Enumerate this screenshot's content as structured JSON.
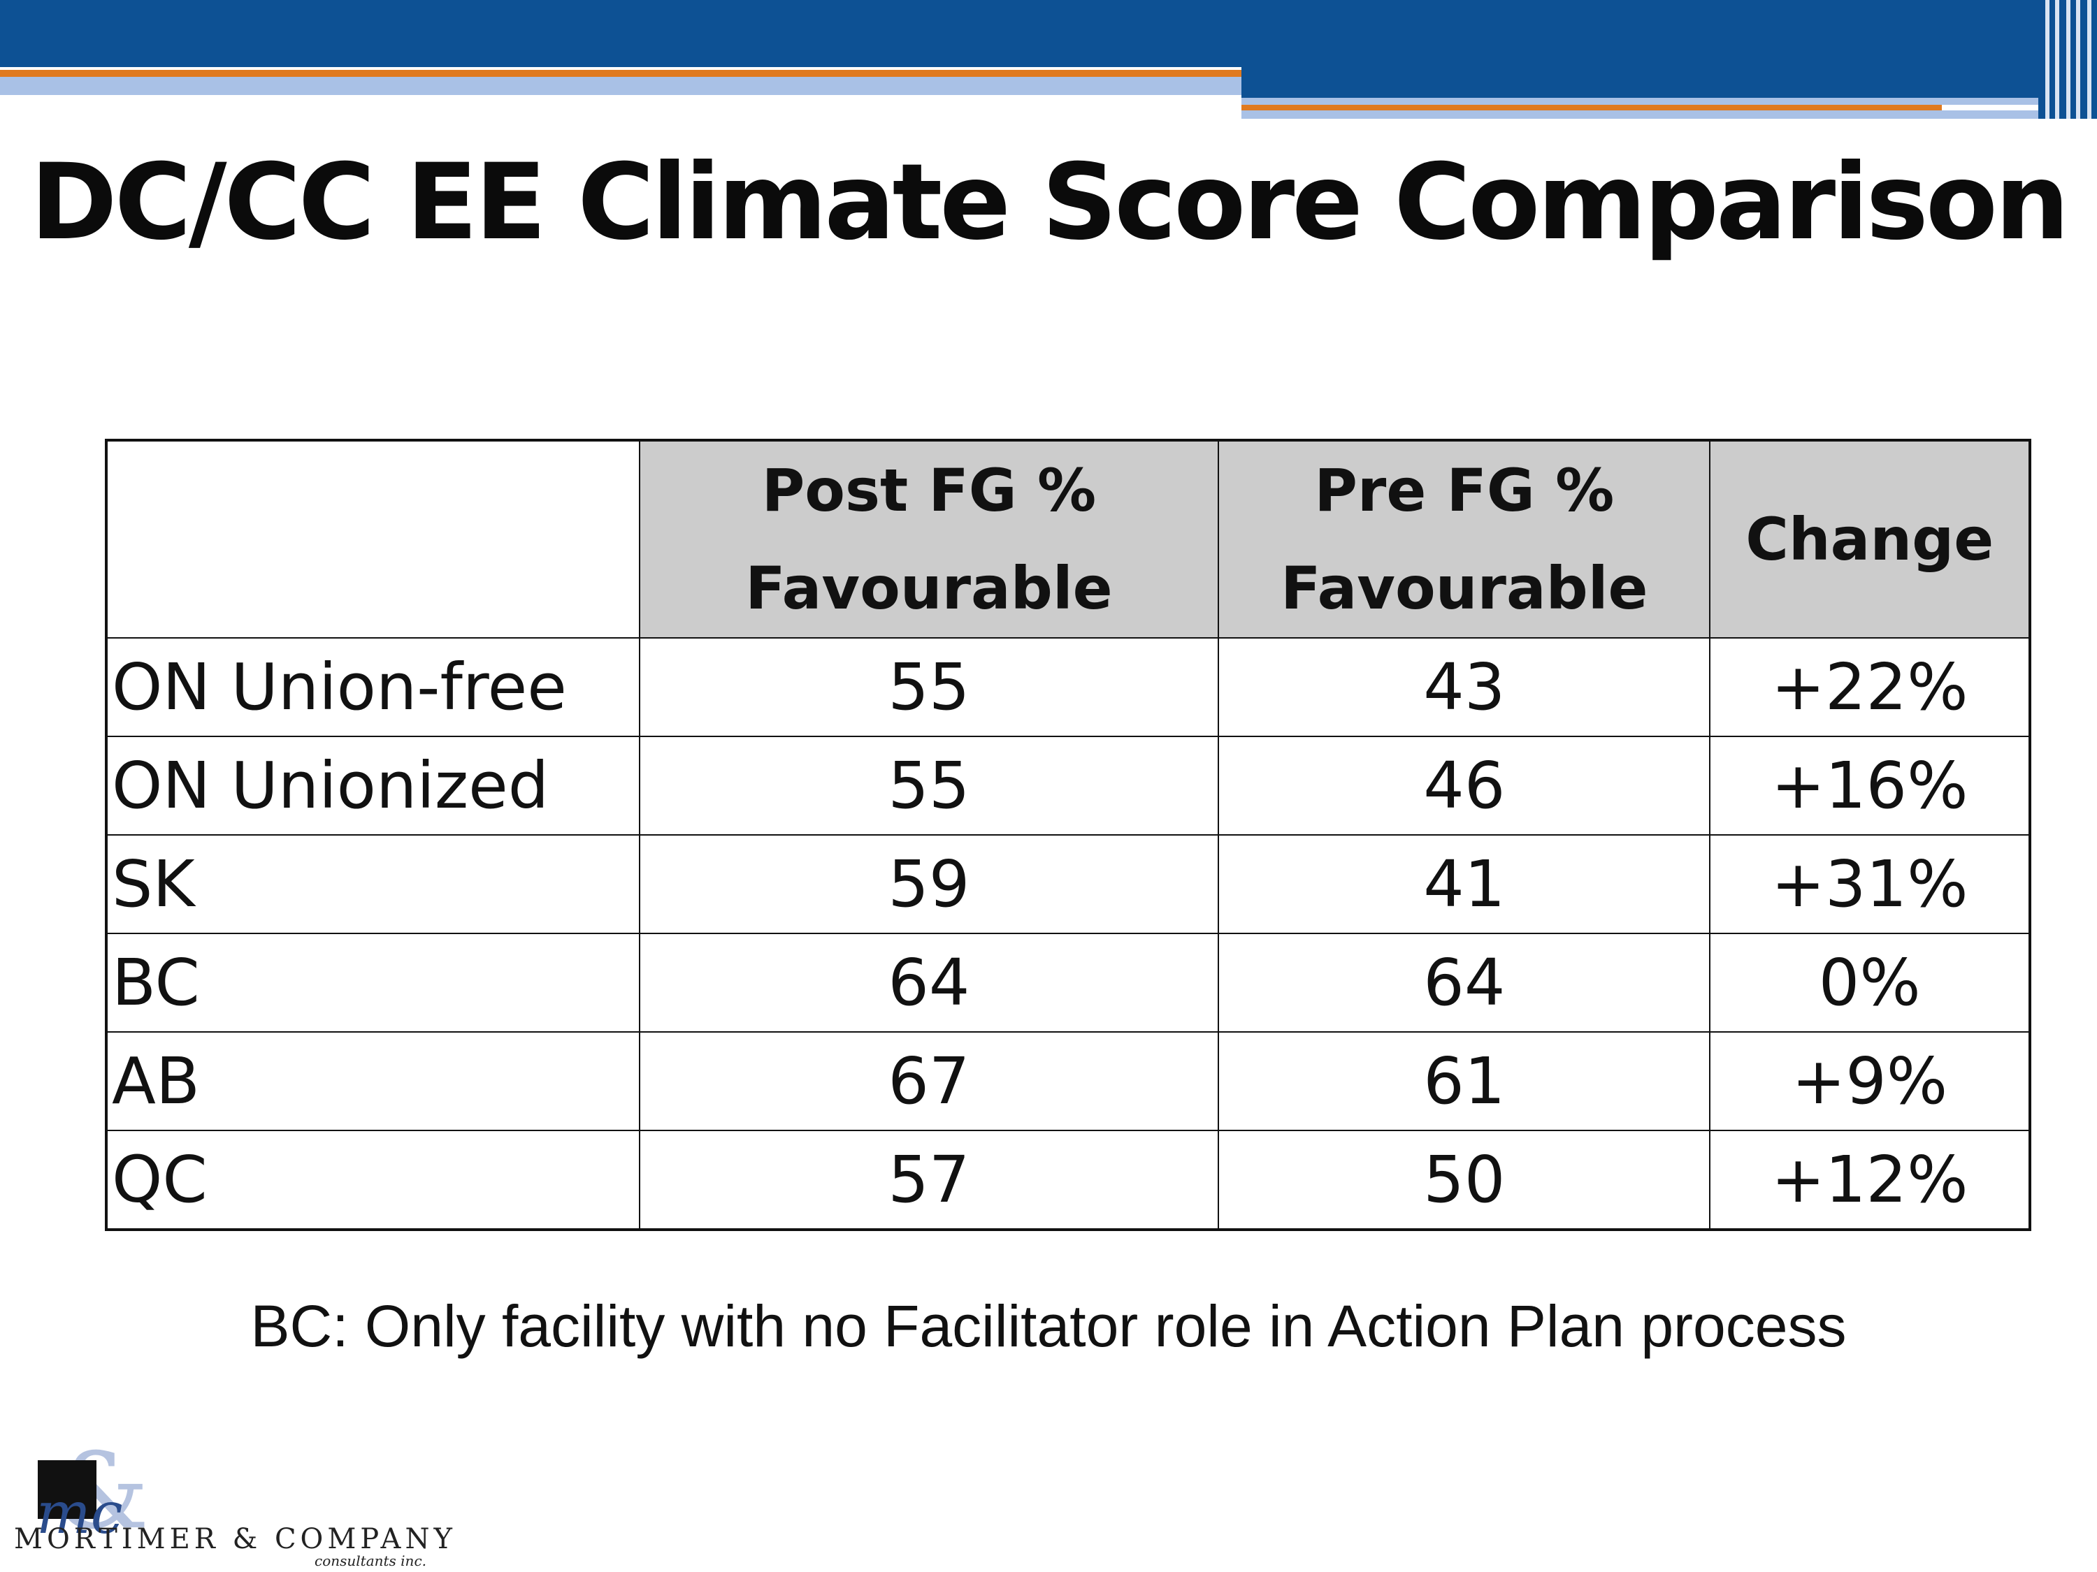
{
  "title": "DC/CC EE Climate Score Comparison",
  "table": {
    "headers": [
      "",
      "Post FG % Favourable",
      "Pre FG % Favourable",
      "Change"
    ],
    "header_lines": {
      "post": [
        "Post FG %",
        "Favourable"
      ],
      "pre": [
        "Pre FG %",
        "Favourable"
      ],
      "change": "Change"
    },
    "rows": [
      {
        "name": "ON Union-free",
        "post": "55",
        "pre": "43",
        "change": "+22%"
      },
      {
        "name": "ON Unionized",
        "post": "55",
        "pre": "46",
        "change": "+16%"
      },
      {
        "name": "SK",
        "post": "59",
        "pre": "41",
        "change": "+31%"
      },
      {
        "name": "BC",
        "post": "64",
        "pre": "64",
        "change": "0%"
      },
      {
        "name": "AB",
        "post": "67",
        "pre": "61",
        "change": "+9%"
      },
      {
        "name": "QC",
        "post": "57",
        "pre": "50",
        "change": "+12%"
      }
    ]
  },
  "note": "BC:  Only facility with no Facilitator role in Action Plan process",
  "logo": {
    "monogram": "mc",
    "name": "MORTIMER & COMPANY",
    "sub": "consultants inc."
  },
  "colors": {
    "banner_blue": "#0d5194",
    "banner_orange": "#e07a1f",
    "banner_light": "#a9c1e6",
    "header_gray": "#cccccc"
  }
}
